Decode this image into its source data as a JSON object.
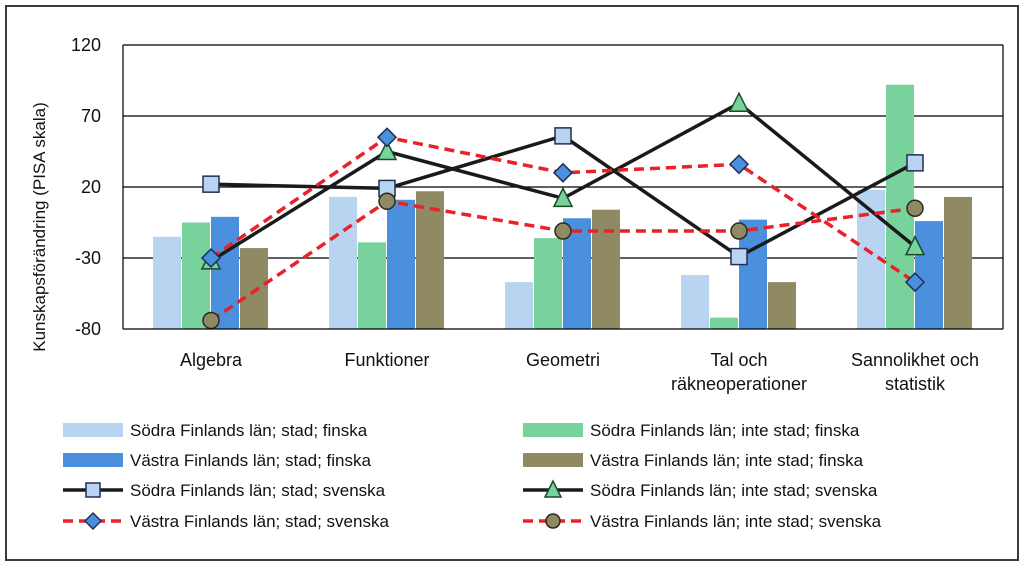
{
  "chart_data": {
    "type": "bar",
    "ylabel": "Kunskapsförändring (PISA skala)",
    "xlabel": "",
    "ylim": [
      -80,
      120
    ],
    "yticks": [
      120,
      70,
      20,
      -30,
      -80
    ],
    "grid": true,
    "legend_position": "bottom",
    "categories": [
      "Algebra",
      "Funktioner",
      "Geometri",
      "Tal och\nräkneoperationer",
      "Sannolikhet och\nstatistik"
    ],
    "category_lines": [
      [
        "Algebra"
      ],
      [
        "Funktioner"
      ],
      [
        "Geometri"
      ],
      [
        "Tal och",
        "räkneoperationer"
      ],
      [
        "Sannolikhet och",
        "statistik"
      ]
    ],
    "bar_series": [
      {
        "name": "Södra Finlands län; stad; finska",
        "color": "#b8d4f0",
        "values": [
          -15,
          13,
          -47,
          -42,
          18
        ]
      },
      {
        "name": "Södra Finlands län; inte stad; finska",
        "color": "#78d29b",
        "values": [
          -5,
          -19,
          -16,
          -72,
          92
        ]
      },
      {
        "name": "Västra Finlands län; stad; finska",
        "color": "#4a90dd",
        "values": [
          -1,
          11,
          -2,
          -3,
          -4
        ]
      },
      {
        "name": "Västra Finlands län; inte stad; finska",
        "color": "#8f8a63",
        "values": [
          -23,
          17,
          4,
          -47,
          13
        ]
      }
    ],
    "line_series": [
      {
        "name": "Södra Finlands län; stad; svenska",
        "color": "#1a1a1a",
        "dashed": false,
        "marker": "square",
        "marker_fill": "#b8d4f0",
        "values": [
          22,
          19,
          56,
          -29,
          37
        ]
      },
      {
        "name": "Södra Finlands län; inte stad; svenska",
        "color": "#1a1a1a",
        "dashed": false,
        "marker": "triangle",
        "marker_fill": "#78d29b",
        "values": [
          -32,
          45,
          12,
          79,
          -22
        ]
      },
      {
        "name": "Västra Finlands län; stad; svenska",
        "color": "#e8212b",
        "dashed": true,
        "marker": "diamond",
        "marker_fill": "#4a90dd",
        "values": [
          -30,
          55,
          30,
          36,
          -47
        ]
      },
      {
        "name": "Västra Finlands län; inte stad; svenska",
        "color": "#e8212b",
        "dashed": true,
        "marker": "circle",
        "marker_fill": "#8f8a63",
        "values": [
          -74,
          10,
          -11,
          -11,
          5
        ]
      }
    ]
  }
}
